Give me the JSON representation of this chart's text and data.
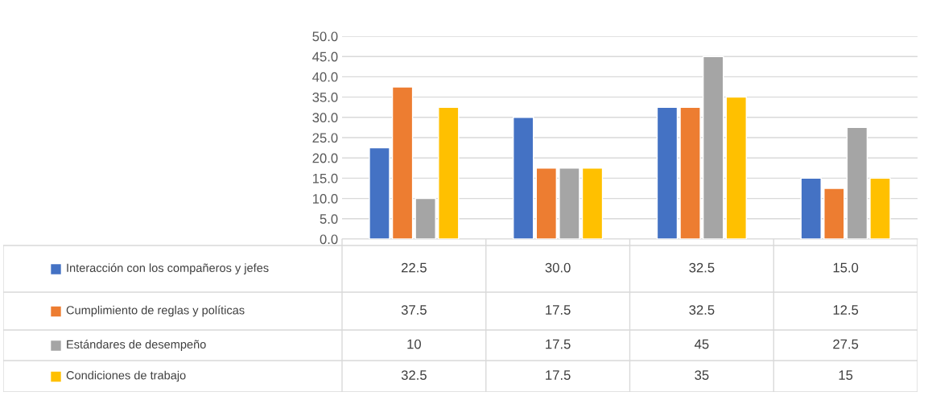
{
  "chart_data": {
    "type": "bar",
    "categories": [
      null,
      null,
      null,
      null
    ],
    "series": [
      {
        "name": "Interacción con los compañeros y jefes",
        "color": "#4472c4",
        "values": [
          22.5,
          30.0,
          32.5,
          15.0
        ],
        "value_labels": [
          "22.5",
          "30.0",
          "32.5",
          "15.0"
        ]
      },
      {
        "name": "Cumplimiento de reglas y políticas",
        "color": "#ed7d31",
        "values": [
          37.5,
          17.5,
          32.5,
          12.5
        ],
        "value_labels": [
          "37.5",
          "17.5",
          "32.5",
          "12.5"
        ]
      },
      {
        "name": "Estándares de desempeño",
        "color": "#a5a5a5",
        "values": [
          10,
          17.5,
          45,
          27.5
        ],
        "value_labels": [
          "10",
          "17.5",
          "45",
          "27.5"
        ]
      },
      {
        "name": "Condiciones de trabajo",
        "color": "#ffc000",
        "values": [
          32.5,
          17.5,
          35,
          15
        ],
        "value_labels": [
          "32.5",
          "17.5",
          "35",
          "15"
        ]
      }
    ],
    "ylim": [
      0,
      50
    ],
    "yticks": [
      {
        "value": 0,
        "label": "0.0"
      },
      {
        "value": 5,
        "label": "5.0"
      },
      {
        "value": 10,
        "label": "10.0"
      },
      {
        "value": 15,
        "label": "15.0"
      },
      {
        "value": 20,
        "label": "20.0"
      },
      {
        "value": 25,
        "label": "25.0"
      },
      {
        "value": 30,
        "label": "30.0"
      },
      {
        "value": 35,
        "label": "35.0"
      },
      {
        "value": 40,
        "label": "40.0"
      },
      {
        "value": 45,
        "label": "45.0"
      },
      {
        "value": 50,
        "label": "50.0"
      }
    ],
    "grid": "y",
    "legend": "bottom"
  }
}
